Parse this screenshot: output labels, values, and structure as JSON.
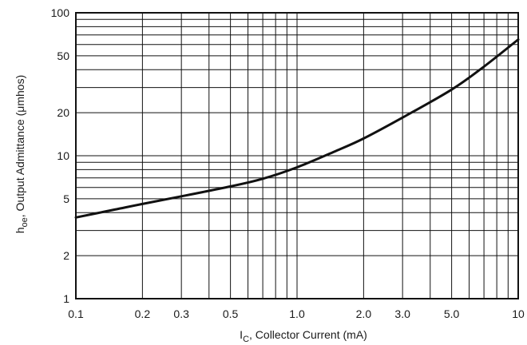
{
  "chart_data": {
    "type": "line",
    "title": "",
    "xscale": "log",
    "yscale": "log",
    "xlim": [
      0.1,
      10
    ],
    "ylim": [
      1,
      100
    ],
    "grid": true,
    "x_tick_labels": [
      "0.1",
      "0.2",
      "0.3",
      "0.5",
      "1.0",
      "2.0",
      "3.0",
      "5.0",
      "10"
    ],
    "y_tick_labels": [
      "1",
      "2",
      "5",
      "10",
      "20",
      "50",
      "100"
    ],
    "xlabel": {
      "main": "I",
      "sub": "C",
      "rest": ", Collector  Current (mA)"
    },
    "ylabel": {
      "main": "h",
      "sub": "oe",
      "rest": ", Output Admittance (μmhos)"
    },
    "series": [
      {
        "x": [
          0.1,
          0.15,
          0.2,
          0.3,
          0.5,
          0.7,
          1.0,
          1.5,
          2.0,
          3.0,
          5.0,
          7.0,
          10
        ],
        "y": [
          3.7,
          4.2,
          4.6,
          5.2,
          6.1,
          6.9,
          8.3,
          10.8,
          13.2,
          18.5,
          29,
          42,
          65
        ]
      }
    ]
  }
}
